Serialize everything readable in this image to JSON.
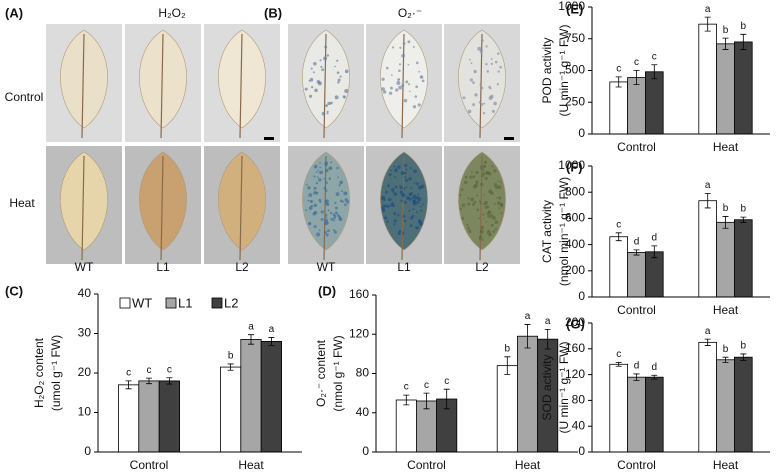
{
  "photo_panels": [
    {
      "label": "(A)",
      "title": "H₂O₂",
      "rows": [
        "Control",
        "Heat"
      ],
      "columns": [
        "WT",
        "L1",
        "L2"
      ]
    },
    {
      "label": "(B)",
      "title": "O₂·⁻",
      "columns": [
        "WT",
        "L1",
        "L2"
      ]
    }
  ],
  "chart_data": [
    {
      "type": "bar",
      "label": "(C)",
      "y_label": [
        "H₂O₂ content",
        "(umol g⁻¹ FW)"
      ],
      "categories": [
        "Control",
        "Heat"
      ],
      "legend": "top",
      "ylim": [
        0,
        40
      ],
      "yticks": [
        0,
        10,
        20,
        30,
        40
      ],
      "series": [
        {
          "name": "WT",
          "color": "#ffffff",
          "values": [
            17,
            21.5
          ],
          "errors": [
            1,
            0.8
          ],
          "significance": [
            "c",
            "b"
          ]
        },
        {
          "name": "L1",
          "color": "#a6a6a6",
          "values": [
            18,
            28.5
          ],
          "errors": [
            0.7,
            1.2
          ],
          "significance": [
            "c",
            "a"
          ]
        },
        {
          "name": "L2",
          "color": "#404040",
          "values": [
            18,
            28
          ],
          "errors": [
            0.8,
            1
          ],
          "significance": [
            "c",
            "a"
          ]
        }
      ]
    },
    {
      "type": "bar",
      "label": "(D)",
      "y_label": [
        "O₂·⁻ content",
        "(nmol g⁻¹ FW)"
      ],
      "categories": [
        "Control",
        "Heat"
      ],
      "ylim": [
        0,
        160
      ],
      "yticks": [
        0,
        40,
        80,
        120,
        160
      ],
      "series": [
        {
          "name": "WT",
          "color": "#ffffff",
          "values": [
            53,
            88
          ],
          "errors": [
            5,
            9
          ],
          "significance": [
            "c",
            "b"
          ]
        },
        {
          "name": "L1",
          "color": "#a6a6a6",
          "values": [
            52,
            118
          ],
          "errors": [
            8,
            12
          ],
          "significance": [
            "c",
            "a"
          ]
        },
        {
          "name": "L2",
          "color": "#404040",
          "values": [
            54,
            115
          ],
          "errors": [
            10,
            10
          ],
          "significance": [
            "c",
            "a"
          ]
        }
      ]
    },
    {
      "type": "bar",
      "label": "(E)",
      "y_label": [
        "POD activity",
        "(U min⁻¹ g⁻¹ FW)"
      ],
      "categories": [
        "Control",
        "Heat"
      ],
      "ylim": [
        0,
        1000
      ],
      "yticks": [
        0,
        250,
        500,
        750,
        1000
      ],
      "series": [
        {
          "name": "WT",
          "color": "#ffffff",
          "values": [
            410,
            865
          ],
          "errors": [
            40,
            55
          ],
          "significance": [
            "c",
            "a"
          ]
        },
        {
          "name": "L1",
          "color": "#a6a6a6",
          "values": [
            445,
            710
          ],
          "errors": [
            55,
            45
          ],
          "significance": [
            "c",
            "b"
          ]
        },
        {
          "name": "L2",
          "color": "#404040",
          "values": [
            490,
            725
          ],
          "errors": [
            55,
            60
          ],
          "significance": [
            "c",
            "b"
          ]
        }
      ]
    },
    {
      "type": "bar",
      "label": "(F)",
      "y_label": [
        "CAT activity",
        "(nmol min⁻¹ g⁻¹ FW)"
      ],
      "categories": [
        "Control",
        "Heat"
      ],
      "ylim": [
        0,
        1000
      ],
      "yticks": [
        0,
        200,
        400,
        600,
        800,
        1000
      ],
      "series": [
        {
          "name": "WT",
          "color": "#ffffff",
          "values": [
            460,
            735
          ],
          "errors": [
            30,
            55
          ],
          "significance": [
            "c",
            "a"
          ]
        },
        {
          "name": "L1",
          "color": "#a6a6a6",
          "values": [
            340,
            570
          ],
          "errors": [
            20,
            45
          ],
          "significance": [
            "d",
            "b"
          ]
        },
        {
          "name": "L2",
          "color": "#404040",
          "values": [
            345,
            590
          ],
          "errors": [
            45,
            20
          ],
          "significance": [
            "d",
            "b"
          ]
        }
      ]
    },
    {
      "type": "bar",
      "label": "(G)",
      "y_label": [
        "SOD activity",
        "(U min⁻¹ g⁻¹ FW)"
      ],
      "categories": [
        "Control",
        "Heat"
      ],
      "ylim": [
        0,
        200
      ],
      "yticks": [
        0,
        40,
        80,
        120,
        160,
        200
      ],
      "series": [
        {
          "name": "WT",
          "color": "#ffffff",
          "values": [
            136,
            170
          ],
          "errors": [
            3,
            5
          ],
          "significance": [
            "c",
            "a"
          ]
        },
        {
          "name": "L1",
          "color": "#a6a6a6",
          "values": [
            116,
            143
          ],
          "errors": [
            5,
            4
          ],
          "significance": [
            "d",
            "b"
          ]
        },
        {
          "name": "L2",
          "color": "#404040",
          "values": [
            116,
            147
          ],
          "errors": [
            3,
            5
          ],
          "significance": [
            "d",
            "b"
          ]
        }
      ]
    }
  ]
}
